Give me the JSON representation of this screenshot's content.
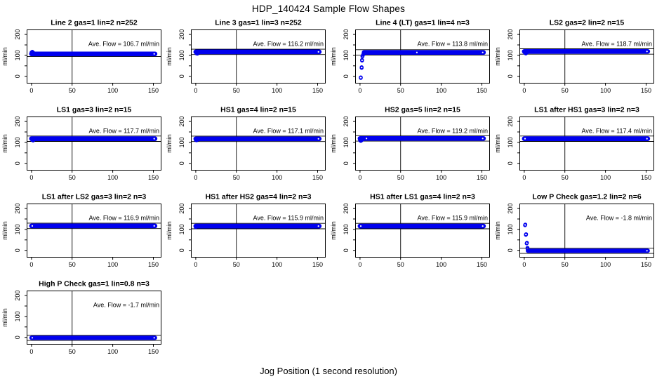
{
  "figure": {
    "title": "HDP_140424  Sample Flow Shapes",
    "xlabel": "Jog Position (1 second resolution)",
    "ylabel": "ml/min",
    "point_color": "#0000EE",
    "line_color": "#000000",
    "background": "#FFFFFF",
    "axes": {
      "xlim": [
        -5.5,
        159.5
      ],
      "ylim": [
        -33,
        222
      ],
      "x_ticks": [
        0,
        50,
        100,
        150
      ],
      "y_ticks_labeled": [
        0,
        100,
        200
      ],
      "y_ticks_minor": [
        50,
        150
      ],
      "vline_x": 50
    }
  },
  "chart_data": [
    {
      "type": "scatter",
      "title": "Line 2 gas=1 lin=2 n=252",
      "ave_flow": 106.7,
      "ave_label": "Ave. Flow =  106.7  ml/min",
      "plateau": {
        "x_start": 0,
        "x_end": 152,
        "level": 107,
        "halfwidth": 4
      },
      "ref_lines": [
        94
      ],
      "vline_x": 50,
      "early_points": [
        [
          0,
          114
        ],
        [
          1,
          117
        ],
        [
          1.5,
          115
        ],
        [
          2,
          113
        ],
        [
          3,
          110
        ]
      ],
      "notches": [
        151
      ]
    },
    {
      "type": "scatter",
      "title": "Line 3 gas=1 lin=3 n=252",
      "ave_flow": 116.2,
      "ave_label": "Ave. Flow =  116.2  ml/min",
      "plateau": {
        "x_start": 0,
        "x_end": 152,
        "level": 116.5,
        "halfwidth": 4
      },
      "ref_lines": [
        104,
        129.5
      ],
      "vline_x": 50,
      "early_points": [
        [
          1,
          109
        ],
        [
          2,
          108
        ],
        [
          3,
          111
        ]
      ],
      "notches": [
        151
      ]
    },
    {
      "type": "scatter",
      "title": "Line 4 (LT) gas=1 lin=4 n=3",
      "ave_flow": 113.8,
      "ave_label": "Ave. Flow =  113.8  ml/min",
      "plateau": {
        "x_start": 5,
        "x_end": 152,
        "level": 114,
        "halfwidth": 4
      },
      "ref_lines": [
        101,
        127
      ],
      "vline_x": 50,
      "early_points": [
        [
          1,
          -5
        ],
        [
          1,
          -8
        ],
        [
          2,
          40
        ],
        [
          2,
          43
        ],
        [
          2.5,
          75
        ],
        [
          2.5,
          78
        ],
        [
          3,
          95
        ],
        [
          3.5,
          100
        ],
        [
          4,
          105
        ],
        [
          5,
          109
        ]
      ],
      "notches": [
        70,
        151
      ]
    },
    {
      "type": "scatter",
      "title": "LS2 gas=2 lin=2 n=15",
      "ave_flow": 118.7,
      "ave_label": "Ave. Flow =  118.7  ml/min",
      "plateau": {
        "x_start": 0,
        "x_end": 152,
        "level": 118.5,
        "halfwidth": 4
      },
      "ref_lines": [
        105.5,
        131.5
      ],
      "vline_x": 50,
      "early_points": [
        [
          1,
          111
        ],
        [
          2,
          109
        ],
        [
          3,
          112
        ]
      ],
      "notches": [
        151
      ]
    },
    {
      "type": "scatter",
      "title": "LS1 gas=3 lin=2 n=15",
      "ave_flow": 117.7,
      "ave_label": "Ave. Flow =  117.7  ml/min",
      "plateau": {
        "x_start": 0,
        "x_end": 152,
        "level": 117.5,
        "halfwidth": 4
      },
      "ref_lines": [
        104.5,
        130.5
      ],
      "vline_x": 50,
      "early_points": [
        [
          1,
          111
        ],
        [
          2,
          109
        ]
      ],
      "notches": [
        151
      ]
    },
    {
      "type": "scatter",
      "title": "HS1 gas=4 lin=2 n=15",
      "ave_flow": 117.1,
      "ave_label": "Ave. Flow =  117.1  ml/min",
      "plateau": {
        "x_start": 0,
        "x_end": 152,
        "level": 117,
        "halfwidth": 4
      },
      "ref_lines": [
        104,
        130
      ],
      "vline_x": 50,
      "early_points": [
        [
          0,
          112
        ],
        [
          1,
          110
        ],
        [
          2,
          112
        ]
      ],
      "notches": [
        151
      ]
    },
    {
      "type": "scatter",
      "title": "HS2 gas=5 lin=2 n=15",
      "ave_flow": 119.2,
      "ave_label": "Ave. Flow =  119.2  ml/min",
      "plateau": {
        "x_start": 0,
        "x_end": 152,
        "level": 118.5,
        "halfwidth": 4
      },
      "ref_lines": [
        106,
        132
      ],
      "vline_x": 50,
      "early_points": [
        [
          0,
          110
        ],
        [
          1,
          107
        ],
        [
          2,
          110
        ],
        [
          3,
          113
        ]
      ],
      "notches": [
        8,
        151
      ]
    },
    {
      "type": "scatter",
      "title": "LS1 after HS1 gas=3 lin=2 n=3",
      "ave_flow": 117.4,
      "ave_label": "Ave. Flow =  117.4  ml/min",
      "plateau": {
        "x_start": 0,
        "x_end": 152,
        "level": 117.5,
        "halfwidth": 4
      },
      "ref_lines": [
        104.5,
        130.5
      ],
      "vline_x": 50,
      "early_points": [],
      "notches": [
        1,
        151
      ]
    },
    {
      "type": "scatter",
      "title": "LS1 after LS2 gas=3 lin=2 n=3",
      "ave_flow": 116.9,
      "ave_label": "Ave. Flow =  116.9  ml/min",
      "plateau": {
        "x_start": 0,
        "x_end": 152,
        "level": 116.5,
        "halfwidth": 4
      },
      "ref_lines": [
        104,
        130
      ],
      "vline_x": 50,
      "early_points": [],
      "notches": [
        1,
        151
      ]
    },
    {
      "type": "scatter",
      "title": "HS1 after HS2 gas=4 lin=2 n=3",
      "ave_flow": 115.9,
      "ave_label": "Ave. Flow =  115.9  ml/min",
      "plateau": {
        "x_start": 0,
        "x_end": 152,
        "level": 116,
        "halfwidth": 4
      },
      "ref_lines": [
        103,
        129
      ],
      "vline_x": 50,
      "early_points": [
        [
          0,
          111
        ]
      ],
      "notches": [
        151
      ]
    },
    {
      "type": "scatter",
      "title": "HS1 after LS1 gas=4 lin=2 n=3",
      "ave_flow": 115.9,
      "ave_label": "Ave. Flow =  115.9  ml/min",
      "plateau": {
        "x_start": 0,
        "x_end": 152,
        "level": 116,
        "halfwidth": 4
      },
      "ref_lines": [
        103,
        129
      ],
      "vline_x": 50,
      "early_points": [],
      "notches": [
        1,
        151
      ]
    },
    {
      "type": "scatter",
      "title": "Low P Check gas=1.2 lin=2 n=6",
      "ave_flow": -1.8,
      "ave_label": "Ave. Flow =  -1.8  ml/min",
      "plateau": {
        "x_start": 4.5,
        "x_end": 152,
        "level": -2,
        "halfwidth": 3
      },
      "ref_lines": [
        -15,
        11
      ],
      "vline_x": 50,
      "early_points": [
        [
          1,
          120
        ],
        [
          1.3,
          123
        ],
        [
          2,
          74
        ],
        [
          2.3,
          77
        ],
        [
          3,
          33
        ],
        [
          3.3,
          36
        ],
        [
          4,
          12
        ],
        [
          4,
          8
        ]
      ],
      "notches": [
        151
      ]
    },
    {
      "type": "scatter",
      "title": "High P Check gas=1 lin=0.8 n=3",
      "ave_flow": -1.7,
      "ave_label": "Ave. Flow =  -1.7  ml/min",
      "plateau": {
        "x_start": 0,
        "x_end": 152,
        "level": -2,
        "halfwidth": 3
      },
      "ref_lines": [
        -15,
        11
      ],
      "vline_x": 50,
      "early_points": [],
      "notches": [
        1,
        151
      ]
    }
  ]
}
